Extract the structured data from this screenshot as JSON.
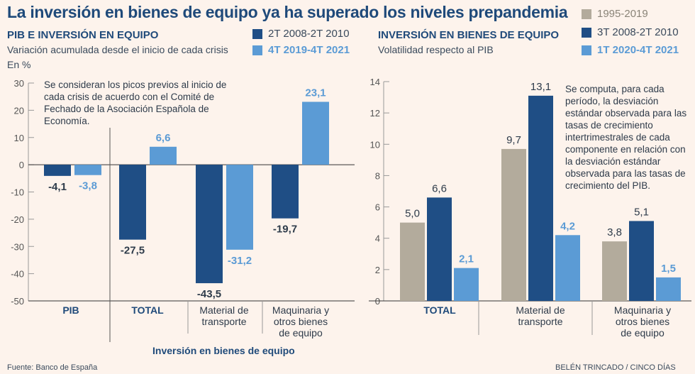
{
  "title": "La inversión en bienes de equipo ya ha superado los niveles prepandemia",
  "colors": {
    "dark": "#1f4e85",
    "light": "#5b9bd5",
    "beige": "#b3ab9c",
    "axis": "#555"
  },
  "left": {
    "subtitle": "PIB E INVERSIÓN EN EQUIPO",
    "description": "Variación acumulada desde el inicio de cada crisis",
    "unit": "En %",
    "note": "Se consideran los picos previos al inicio de cada crisis de acuerdo con el Comité de Fechado de la Asociación Española de Economía.",
    "legend": [
      "2T 2008-2T 2010",
      "4T 2019-4T 2021"
    ],
    "group_label": "Inversión en bienes de equipo"
  },
  "right": {
    "subtitle": "INVERSIÓN EN BIENES DE EQUIPO",
    "description": "Volatilidad respecto al PIB",
    "note": "Se computa, para cada período, la desviación estándar observada para las tasas de crecimiento intertrimestrales de cada componente en relación con la desviación estándar observada para las tasas de crecimiento del PIB.",
    "legend": [
      "1995-2019",
      "3T 2008-2T 2010",
      "1T 2020-4T 2021"
    ]
  },
  "footer": {
    "source": "Fuente: Banco de España",
    "credit": "BELÉN TRINCADO / CINCO DÍAS"
  },
  "chart_data": [
    {
      "type": "bar",
      "categories": [
        "PIB",
        "TOTAL",
        "Material de transporte",
        "Maquinaria y otros bienes de equipo"
      ],
      "series": [
        {
          "name": "2T 2008-2T 2010",
          "values": [
            -4.1,
            -27.5,
            -43.5,
            -19.7
          ],
          "labels": [
            "-4,1",
            "-27,5",
            "-43,5",
            "-19,7"
          ]
        },
        {
          "name": "4T 2019-4T 2021",
          "values": [
            -3.8,
            6.6,
            -31.2,
            23.1
          ],
          "labels": [
            "-3,8",
            "6,6",
            "-31,2",
            "23,1"
          ]
        }
      ],
      "ylim": [
        -50,
        30
      ],
      "yticks": [
        "30",
        "20",
        "10",
        "0",
        "-10",
        "-20",
        "-30",
        "-40",
        "-50"
      ],
      "ytick_values": [
        30,
        20,
        10,
        0,
        -10,
        -20,
        -30,
        -40,
        -50
      ]
    },
    {
      "type": "bar",
      "categories": [
        "TOTAL",
        "Material de transporte",
        "Maquinaria y otros bienes de equipo"
      ],
      "series": [
        {
          "name": "1995-2019",
          "values": [
            5.0,
            9.7,
            3.8
          ],
          "labels": [
            "5,0",
            "9,7",
            "3,8"
          ]
        },
        {
          "name": "3T 2008-2T 2010",
          "values": [
            6.6,
            13.1,
            5.1
          ],
          "labels": [
            "6,6",
            "13,1",
            "5,1"
          ]
        },
        {
          "name": "1T 2020-4T 2021",
          "values": [
            2.1,
            4.2,
            1.5
          ],
          "labels": [
            "2,1",
            "4,2",
            "1,5"
          ]
        }
      ],
      "ylim": [
        0,
        14
      ],
      "yticks": [
        "14",
        "12",
        "10",
        "8",
        "6",
        "4",
        "2",
        "0"
      ],
      "ytick_values": [
        14,
        12,
        10,
        8,
        6,
        4,
        2,
        0
      ]
    }
  ]
}
